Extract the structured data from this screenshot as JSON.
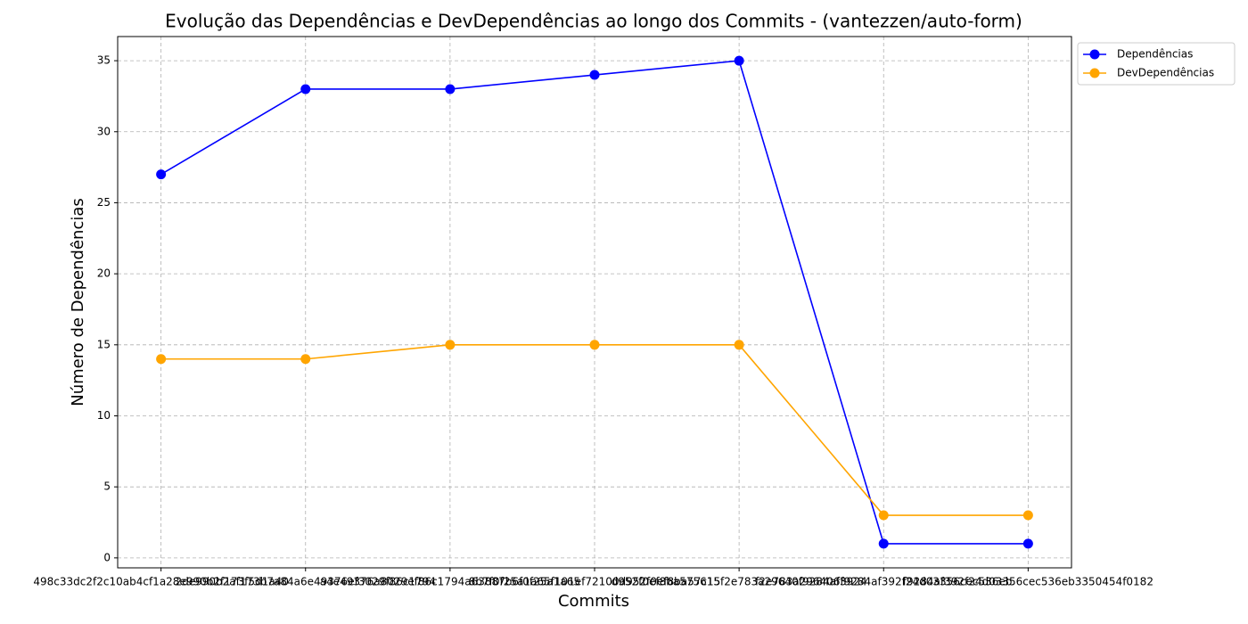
{
  "chart_data": {
    "type": "line",
    "title": "Evolução das Dependências e DevDependências ao longo dos Commits - (vantezzen/auto-form)",
    "x_label": "Commits",
    "y_label": "Número de Dependências",
    "categories": [
      "498c33dc2f2c10ab4cf1a28e990b2f173f5d1a40",
      "2de990b2af173b7a84a6e49376ef3029f86c1794",
      "a4e49376a8029ef86c1794a63887b6f0f25a1a65",
      "8b7f0f25a1a65f101ef72100d952f0ef8ba57c15",
      "d952f0ef8ba575615f2e783a29640f9284af3924",
      "f2e783a296406f9284af392f24d03356cec536eb",
      "f9284af392f24d03356cec536eb3350454f0182"
    ],
    "series": [
      {
        "name": "Dependências",
        "color": "#0000ff",
        "values": [
          27,
          33,
          33,
          34,
          35,
          1,
          1
        ]
      },
      {
        "name": "DevDependências",
        "color": "#ffa500",
        "values": [
          14,
          14,
          15,
          15,
          15,
          3,
          3
        ]
      }
    ],
    "xlim": [
      -0.3,
      6.3
    ],
    "ylim": [
      -0.7,
      36.7
    ],
    "yticks": [
      0,
      5,
      10,
      15,
      20,
      25,
      30,
      35
    ],
    "grid": true,
    "legend": "upper right outside"
  }
}
